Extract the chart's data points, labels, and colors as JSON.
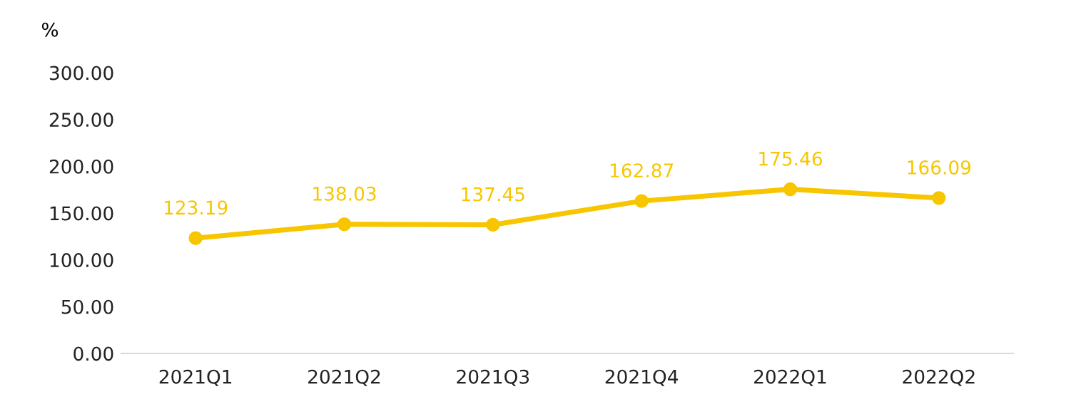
{
  "chart_data": {
    "type": "line",
    "ylabel": "%",
    "categories": [
      "2021Q1",
      "2021Q2",
      "2021Q3",
      "2021Q4",
      "2022Q1",
      "2022Q2"
    ],
    "series": [
      {
        "color": "#f7c600",
        "values": [
          123.19,
          138.03,
          137.45,
          162.87,
          175.46,
          166.09
        ]
      }
    ],
    "value_labels": [
      "123.19",
      "138.03",
      "137.45",
      "162.87",
      "175.46",
      "166.09"
    ],
    "ylim": [
      0,
      300
    ],
    "yticks": [
      {
        "value": 0,
        "label": "0.00"
      },
      {
        "value": 50,
        "label": "50.00"
      },
      {
        "value": 100,
        "label": "100.00"
      },
      {
        "value": 150,
        "label": "150.00"
      },
      {
        "value": 200,
        "label": "200.00"
      },
      {
        "value": 250,
        "label": "250.00"
      },
      {
        "value": 300,
        "label": "300.00"
      }
    ],
    "marker": "circle",
    "line_style": "solid",
    "grid": false,
    "legend": false
  }
}
